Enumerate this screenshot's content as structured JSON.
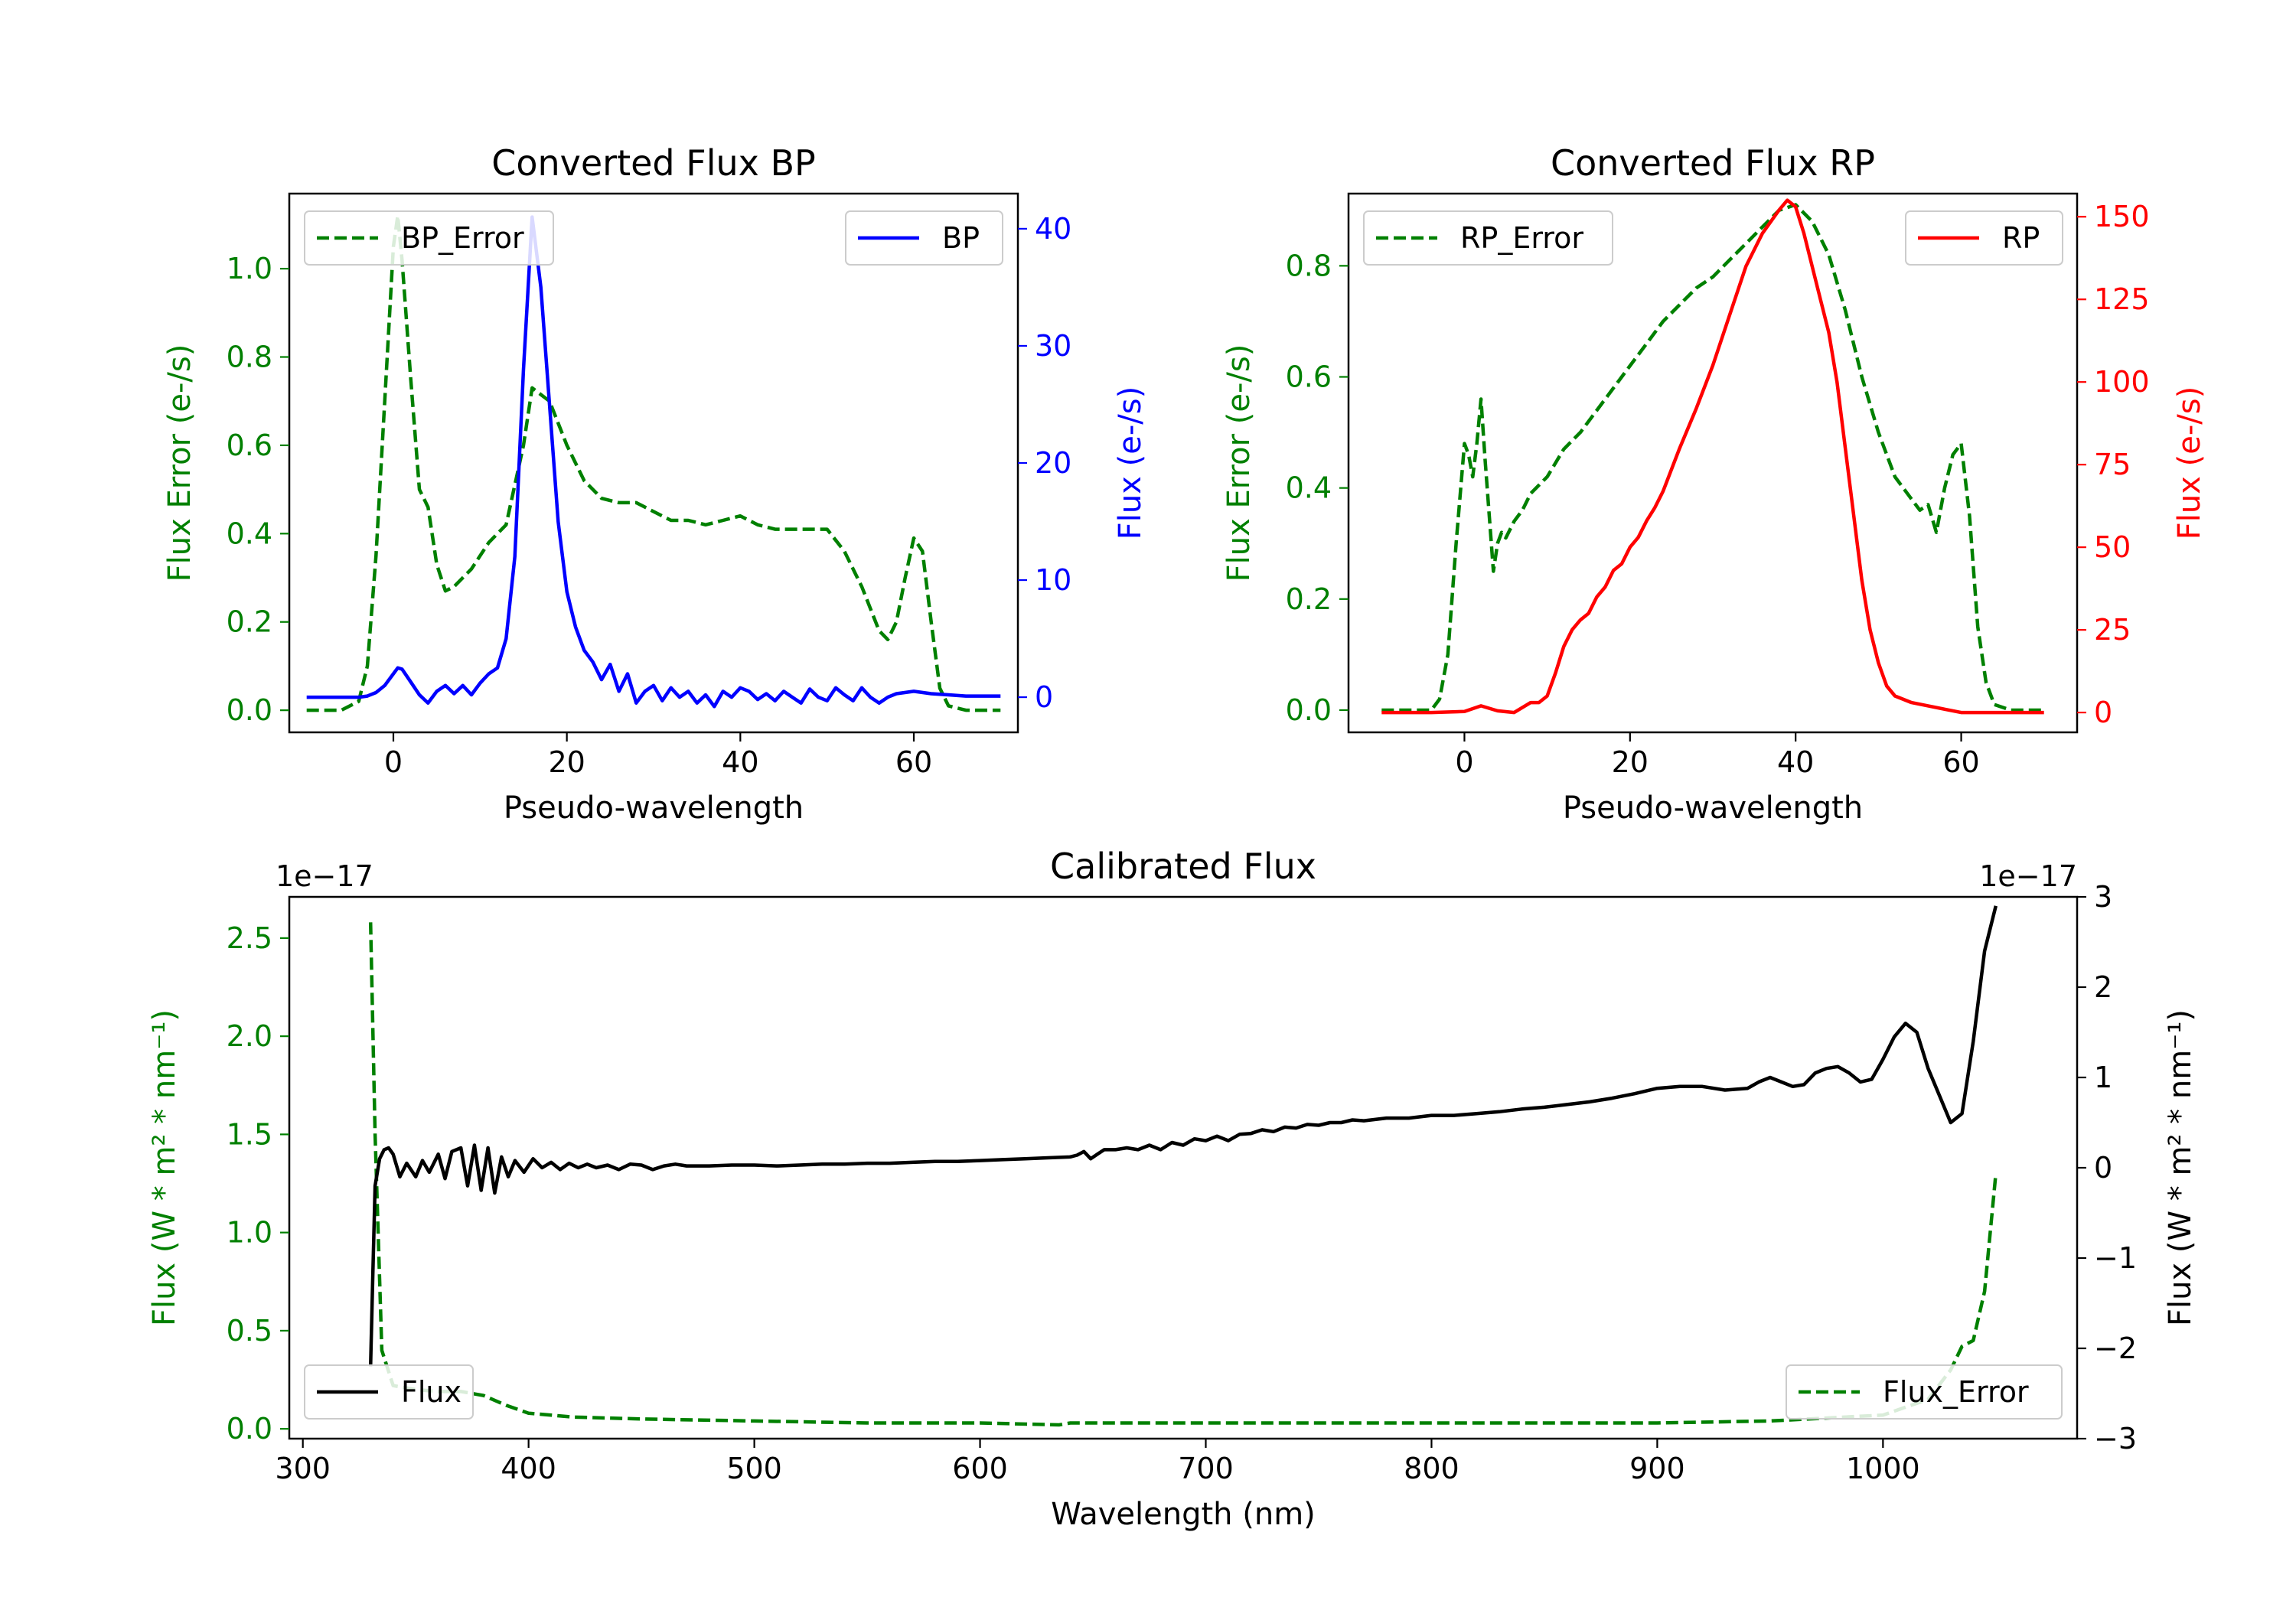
{
  "colors": {
    "green": "#008000",
    "blue": "#0000ff",
    "red": "#ff0000",
    "black": "#000000"
  },
  "chart_data": [
    {
      "id": "bp",
      "type": "line",
      "title": "Converted Flux BP",
      "xlabel": "Pseudo-wavelength",
      "ylabel_left": "Flux Error (e-/s)",
      "ylabel_right": "Flux (e-/s)",
      "xlim": [
        -12,
        72
      ],
      "ylim_left": [
        -0.05,
        1.17
      ],
      "ylim_right": [
        -3,
        43
      ],
      "xticks": [
        0,
        20,
        40,
        60
      ],
      "yticks_left": [
        0.0,
        0.2,
        0.4,
        0.6,
        0.8,
        1.0
      ],
      "yticks_right": [
        0,
        10,
        20,
        30,
        40
      ],
      "legend_left": "BP_Error",
      "legend_right": "BP",
      "series": [
        {
          "name": "BP_Error",
          "axis": "left",
          "color": "green",
          "style": "dashed",
          "x": [
            -10,
            -6,
            -4,
            -3,
            -2,
            -1,
            0,
            0.5,
            1,
            2,
            3,
            4,
            5,
            6,
            7,
            9,
            11,
            13,
            15,
            16,
            18,
            20,
            22,
            24,
            26,
            28,
            30,
            32,
            34,
            36,
            38,
            40,
            42,
            44,
            46,
            48,
            50,
            52,
            54,
            56,
            57,
            58,
            59,
            60,
            61,
            62,
            63,
            64,
            66,
            68,
            70
          ],
          "y": [
            0,
            0,
            0.02,
            0.1,
            0.35,
            0.7,
            1.05,
            1.12,
            1.02,
            0.75,
            0.5,
            0.46,
            0.33,
            0.27,
            0.28,
            0.32,
            0.38,
            0.42,
            0.6,
            0.73,
            0.7,
            0.6,
            0.52,
            0.48,
            0.47,
            0.47,
            0.45,
            0.43,
            0.43,
            0.42,
            0.43,
            0.44,
            0.42,
            0.41,
            0.41,
            0.41,
            0.41,
            0.36,
            0.28,
            0.18,
            0.16,
            0.2,
            0.3,
            0.39,
            0.36,
            0.2,
            0.05,
            0.01,
            0,
            0,
            0
          ]
        },
        {
          "name": "BP",
          "axis": "right",
          "color": "blue",
          "style": "solid",
          "x": [
            -10,
            -6,
            -4,
            -3,
            -2,
            -1,
            0,
            0.5,
            1,
            2,
            3,
            4,
            5,
            6,
            7,
            8,
            9,
            10,
            11,
            12,
            13,
            14,
            15,
            16,
            17,
            18,
            19,
            20,
            21,
            22,
            23,
            24,
            25,
            26,
            27,
            28,
            29,
            30,
            31,
            32,
            33,
            34,
            35,
            36,
            37,
            38,
            39,
            40,
            41,
            42,
            43,
            44,
            45,
            46,
            47,
            48,
            49,
            50,
            51,
            52,
            53,
            54,
            55,
            56,
            57,
            58,
            60,
            62,
            64,
            66,
            68,
            70
          ],
          "y": [
            0,
            0,
            0,
            0.1,
            0.4,
            1,
            2,
            2.5,
            2.4,
            1.3,
            0.2,
            -0.5,
            0.5,
            1,
            0.3,
            1,
            0.2,
            1.2,
            2,
            2.5,
            5,
            12,
            28,
            41,
            35,
            25,
            15,
            9,
            6,
            4,
            3,
            1.5,
            2.8,
            0.5,
            2,
            -0.5,
            0.5,
            1,
            -0.3,
            0.8,
            0,
            0.5,
            -0.5,
            0.2,
            -0.8,
            0.5,
            0,
            0.8,
            0.5,
            -0.2,
            0.3,
            -0.3,
            0.5,
            0,
            -0.5,
            0.7,
            0,
            -0.3,
            0.8,
            0.2,
            -0.3,
            0.8,
            0,
            -0.5,
            0,
            0.3,
            0.5,
            0.3,
            0.2,
            0.1,
            0.1,
            0.1
          ]
        }
      ]
    },
    {
      "id": "rp",
      "type": "line",
      "title": "Converted Flux RP",
      "xlabel": "Pseudo-wavelength",
      "ylabel_left": "Flux Error (e-/s)",
      "ylabel_right": "Flux (e-/s)",
      "xlim": [
        -14,
        74
      ],
      "ylim_left": [
        -0.04,
        0.93
      ],
      "ylim_right": [
        -6,
        157
      ],
      "xticks": [
        0,
        20,
        40,
        60
      ],
      "yticks_left": [
        0.0,
        0.2,
        0.4,
        0.6,
        0.8
      ],
      "yticks_right": [
        0,
        25,
        50,
        75,
        100,
        125,
        150
      ],
      "legend_left": "RP_Error",
      "legend_right": "RP",
      "series": [
        {
          "name": "RP_Error",
          "axis": "left",
          "color": "green",
          "style": "dashed",
          "x": [
            -10,
            -6,
            -4,
            -3,
            -2,
            -1,
            0,
            0.5,
            1,
            1.5,
            2,
            2.5,
            3,
            3.5,
            4,
            4.5,
            5,
            6,
            7,
            8,
            10,
            12,
            14,
            16,
            18,
            20,
            22,
            24,
            26,
            28,
            30,
            32,
            34,
            36,
            38,
            40,
            42,
            44,
            46,
            48,
            50,
            52,
            54,
            55,
            56,
            57,
            58,
            59,
            60,
            61,
            62,
            63,
            64,
            66,
            68,
            70
          ],
          "y": [
            0,
            0,
            0,
            0.02,
            0.1,
            0.3,
            0.48,
            0.46,
            0.42,
            0.48,
            0.56,
            0.45,
            0.35,
            0.25,
            0.3,
            0.32,
            0.31,
            0.34,
            0.36,
            0.39,
            0.42,
            0.47,
            0.5,
            0.54,
            0.58,
            0.62,
            0.66,
            0.7,
            0.73,
            0.76,
            0.78,
            0.81,
            0.84,
            0.87,
            0.9,
            0.91,
            0.88,
            0.82,
            0.72,
            0.6,
            0.5,
            0.42,
            0.38,
            0.36,
            0.37,
            0.32,
            0.4,
            0.46,
            0.48,
            0.35,
            0.15,
            0.05,
            0.01,
            0,
            0,
            0
          ]
        },
        {
          "name": "RP",
          "axis": "right",
          "color": "red",
          "style": "solid",
          "x": [
            -10,
            -4,
            0,
            2,
            4,
            6,
            8,
            9,
            10,
            11,
            12,
            13,
            14,
            15,
            16,
            17,
            18,
            19,
            20,
            21,
            22,
            23,
            24,
            26,
            28,
            30,
            32,
            34,
            36,
            38,
            39,
            40,
            41,
            42,
            43,
            44,
            45,
            46,
            47,
            48,
            49,
            50,
            51,
            52,
            54,
            56,
            58,
            60,
            62,
            66,
            70
          ],
          "y": [
            0,
            0,
            0.3,
            2,
            0.5,
            0,
            3,
            3,
            5,
            12,
            20,
            25,
            28,
            30,
            35,
            38,
            43,
            45,
            50,
            53,
            58,
            62,
            67,
            80,
            92,
            105,
            120,
            135,
            145,
            152,
            155,
            153,
            145,
            135,
            125,
            115,
            100,
            80,
            60,
            40,
            25,
            15,
            8,
            5,
            3,
            2,
            1,
            0,
            0,
            0,
            0
          ]
        }
      ]
    },
    {
      "id": "calibrated",
      "type": "line",
      "title": "Calibrated Flux",
      "xlabel": "Wavelength (nm)",
      "ylabel_left": "Flux (W * m² * nm⁻¹)",
      "ylabel_right": "Flux (W * m² * nm⁻¹)",
      "offset_left": "1e−17",
      "offset_right": "1e−17",
      "xlim": [
        294,
        1086
      ],
      "ylim_left": [
        -0.05,
        2.71
      ],
      "ylim_right": [
        -3,
        3
      ],
      "xticks": [
        300,
        400,
        500,
        600,
        700,
        800,
        900,
        1000
      ],
      "yticks_left": [
        0.0,
        0.5,
        1.0,
        1.5,
        2.0,
        2.5
      ],
      "yticks_left_labels": [
        "0.0",
        "0.5",
        "1.0",
        "1.5",
        "2.0",
        "2.5"
      ],
      "yticks_right": [
        -3,
        -2,
        -1,
        0,
        1,
        2,
        3
      ],
      "yticks_right_labels": [
        "−3",
        "−2",
        "−1",
        "0",
        "1",
        "2",
        "3"
      ],
      "legend_left": "Flux",
      "legend_right": "Flux_Error",
      "series": [
        {
          "name": "Flux_Error",
          "axis": "left",
          "color": "green",
          "style": "dashed",
          "x": [
            330,
            332,
            335,
            340,
            350,
            360,
            370,
            380,
            390,
            400,
            420,
            450,
            500,
            550,
            600,
            635,
            640,
            650,
            700,
            800,
            900,
            950,
            1000,
            1020,
            1030,
            1035,
            1040,
            1045,
            1050
          ],
          "y": [
            2.58,
            1.5,
            0.4,
            0.22,
            0.2,
            0.19,
            0.19,
            0.17,
            0.12,
            0.08,
            0.06,
            0.05,
            0.04,
            0.03,
            0.03,
            0.02,
            0.03,
            0.03,
            0.03,
            0.03,
            0.03,
            0.04,
            0.07,
            0.15,
            0.3,
            0.42,
            0.45,
            0.7,
            1.3
          ]
        },
        {
          "name": "Flux",
          "axis": "right",
          "color": "black",
          "style": "solid",
          "x": [
            330,
            331,
            332,
            334,
            336,
            338,
            340,
            343,
            346,
            350,
            353,
            356,
            360,
            363,
            366,
            370,
            373,
            376,
            379,
            382,
            385,
            388,
            391,
            394,
            398,
            402,
            406,
            410,
            414,
            418,
            422,
            426,
            430,
            435,
            440,
            445,
            450,
            455,
            460,
            465,
            470,
            480,
            490,
            500,
            510,
            520,
            530,
            540,
            550,
            560,
            570,
            580,
            590,
            600,
            610,
            620,
            630,
            640,
            643,
            646,
            649,
            652,
            655,
            660,
            665,
            670,
            675,
            680,
            685,
            690,
            695,
            700,
            705,
            710,
            715,
            720,
            725,
            730,
            735,
            740,
            745,
            750,
            755,
            760,
            765,
            770,
            780,
            790,
            800,
            810,
            820,
            830,
            840,
            850,
            860,
            870,
            880,
            890,
            900,
            910,
            920,
            930,
            940,
            945,
            950,
            955,
            960,
            965,
            970,
            975,
            980,
            985,
            990,
            995,
            1000,
            1005,
            1010,
            1015,
            1020,
            1025,
            1030,
            1035,
            1040,
            1045,
            1050
          ],
          "y": [
            -2.2,
            -1.2,
            -0.2,
            0.1,
            0.2,
            0.22,
            0.15,
            -0.1,
            0.05,
            -0.1,
            0.08,
            -0.05,
            0.15,
            -0.12,
            0.18,
            0.22,
            -0.2,
            0.25,
            -0.25,
            0.22,
            -0.28,
            0.12,
            -0.1,
            0.08,
            -0.05,
            0.1,
            0,
            0.06,
            -0.02,
            0.05,
            0,
            0.04,
            0,
            0.03,
            -0.02,
            0.04,
            0.03,
            -0.02,
            0.02,
            0.04,
            0.02,
            0.02,
            0.03,
            0.03,
            0.02,
            0.03,
            0.04,
            0.04,
            0.05,
            0.05,
            0.06,
            0.07,
            0.07,
            0.08,
            0.09,
            0.1,
            0.11,
            0.12,
            0.14,
            0.18,
            0.1,
            0.15,
            0.2,
            0.2,
            0.22,
            0.2,
            0.25,
            0.2,
            0.28,
            0.25,
            0.32,
            0.3,
            0.35,
            0.3,
            0.37,
            0.38,
            0.42,
            0.4,
            0.45,
            0.44,
            0.48,
            0.47,
            0.5,
            0.5,
            0.53,
            0.52,
            0.55,
            0.55,
            0.58,
            0.58,
            0.6,
            0.62,
            0.65,
            0.67,
            0.7,
            0.73,
            0.77,
            0.82,
            0.88,
            0.9,
            0.9,
            0.86,
            0.88,
            0.95,
            1.0,
            0.95,
            0.9,
            0.92,
            1.05,
            1.1,
            1.12,
            1.05,
            0.95,
            0.98,
            1.2,
            1.45,
            1.6,
            1.5,
            1.1,
            0.8,
            0.5,
            0.6,
            1.4,
            2.4,
            2.9
          ]
        }
      ]
    }
  ]
}
